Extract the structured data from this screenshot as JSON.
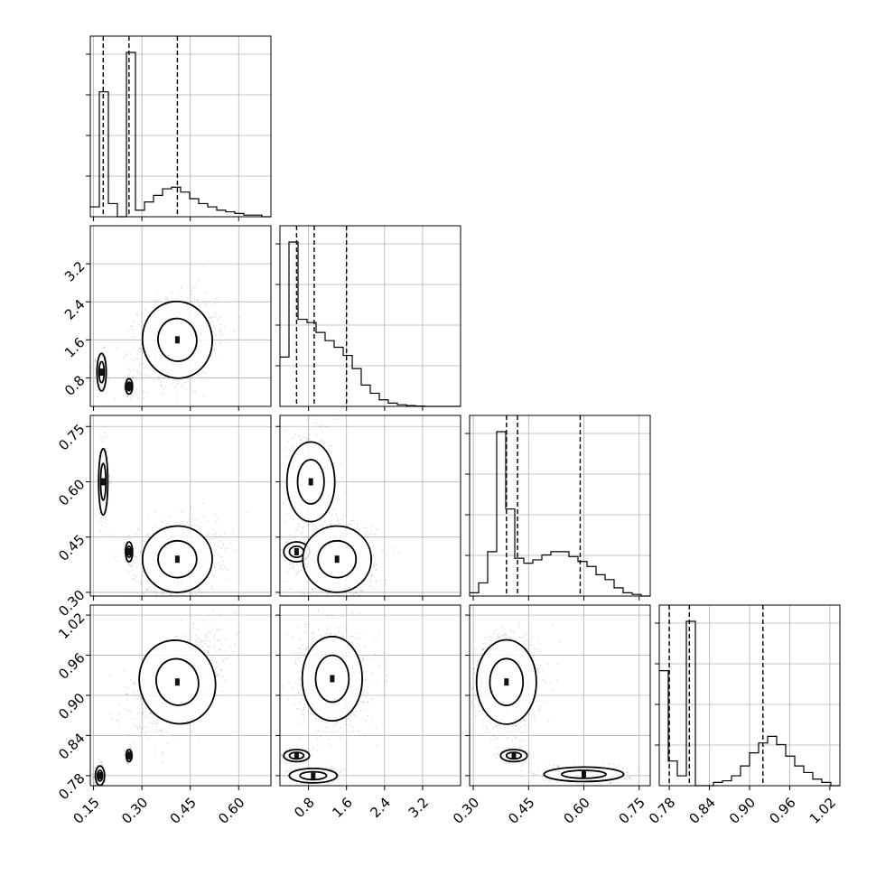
{
  "chart_data": {
    "type": "corner",
    "x_axis_ticks": [
      [
        "0.15",
        "0.30",
        "0.45",
        "0.60"
      ],
      [
        "0.8",
        "1.6",
        "2.4",
        "3.2"
      ],
      [
        "0.30",
        "0.45",
        "0.60",
        "0.75"
      ],
      [
        "0.78",
        "0.84",
        "0.90",
        "0.96",
        "1.02"
      ]
    ],
    "y_axis_ticks": [
      null,
      [
        "0.8",
        "1.6",
        "2.4",
        "3.2"
      ],
      [
        "0.30",
        "0.45",
        "0.60",
        "0.75"
      ],
      [
        "0.78",
        "0.84",
        "0.90",
        "0.96",
        "1.02"
      ]
    ],
    "ranges": [
      [
        0.14,
        0.7
      ],
      [
        0.2,
        4.0
      ],
      [
        0.29,
        0.78
      ],
      [
        0.765,
        1.035
      ]
    ],
    "quantiles": [
      [
        0.18,
        0.26,
        0.41
      ],
      [
        0.55,
        0.92,
        1.6
      ],
      [
        0.39,
        0.42,
        0.59
      ],
      [
        0.78,
        0.81,
        0.92
      ]
    ],
    "histograms": [
      {
        "edges": [
          0.14,
          0.168,
          0.196,
          0.224,
          0.252,
          0.28,
          0.308,
          0.336,
          0.364,
          0.392,
          0.42,
          0.448,
          0.476,
          0.504,
          0.532,
          0.56,
          0.588,
          0.616,
          0.644,
          0.672,
          0.7
        ],
        "counts": [
          0.06,
          0.76,
          0.08,
          0.0,
          1.0,
          0.04,
          0.09,
          0.13,
          0.17,
          0.18,
          0.15,
          0.11,
          0.08,
          0.06,
          0.04,
          0.03,
          0.02,
          0.01,
          0.01,
          0.0
        ]
      },
      {
        "edges": [
          0.2,
          0.39,
          0.58,
          0.77,
          0.96,
          1.15,
          1.34,
          1.53,
          1.72,
          1.91,
          2.1,
          2.29,
          2.48,
          2.67,
          2.86,
          3.05,
          3.24,
          3.43,
          3.62,
          3.81,
          4.0
        ],
        "counts": [
          0.3,
          1.0,
          0.53,
          0.51,
          0.45,
          0.4,
          0.36,
          0.31,
          0.23,
          0.13,
          0.08,
          0.04,
          0.02,
          0.01,
          0.005,
          0.002,
          0.0,
          0.0,
          0.0,
          0.0
        ]
      },
      {
        "edges": [
          0.29,
          0.3145,
          0.339,
          0.3635,
          0.388,
          0.4125,
          0.437,
          0.4615,
          0.486,
          0.5105,
          0.535,
          0.5595,
          0.584,
          0.6085,
          0.633,
          0.6575,
          0.682,
          0.7065,
          0.731,
          0.7555,
          0.78
        ],
        "counts": [
          0.02,
          0.08,
          0.27,
          1.0,
          0.53,
          0.23,
          0.2,
          0.22,
          0.25,
          0.27,
          0.27,
          0.24,
          0.21,
          0.18,
          0.13,
          0.1,
          0.05,
          0.02,
          0.01,
          0.0
        ]
      },
      {
        "edges": [
          0.765,
          0.7785,
          0.792,
          0.8055,
          0.819,
          0.8325,
          0.846,
          0.8595,
          0.873,
          0.8865,
          0.9,
          0.9135,
          0.927,
          0.9405,
          0.954,
          0.9675,
          0.981,
          0.9945,
          1.008,
          1.0215,
          1.035
        ],
        "counts": [
          0.7,
          0.15,
          0.06,
          1.0,
          0.0,
          0.0,
          0.02,
          0.03,
          0.06,
          0.12,
          0.2,
          0.26,
          0.3,
          0.25,
          0.18,
          0.12,
          0.08,
          0.04,
          0.02,
          0.0
        ]
      }
    ],
    "clusters": {
      "1_0": [
        {
          "cx": 0.175,
          "cy": 0.92,
          "sx": 0.008,
          "sy": 0.22,
          "r": 0,
          "w": 0.2
        },
        {
          "cx": 0.26,
          "cy": 0.62,
          "sx": 0.006,
          "sy": 0.09,
          "r": 0,
          "w": 0.15
        },
        {
          "cx": 0.41,
          "cy": 1.6,
          "sx": 0.06,
          "sy": 0.45,
          "r": 0.2,
          "w": 0.65
        }
      ],
      "2_0": [
        {
          "cx": 0.18,
          "cy": 0.6,
          "sx": 0.008,
          "sy": 0.05,
          "r": 0,
          "w": 0.2
        },
        {
          "cx": 0.26,
          "cy": 0.41,
          "sx": 0.006,
          "sy": 0.015,
          "r": 0,
          "w": 0.15
        },
        {
          "cx": 0.41,
          "cy": 0.39,
          "sx": 0.06,
          "sy": 0.05,
          "r": 0.1,
          "w": 0.65
        }
      ],
      "2_1": [
        {
          "cx": 0.85,
          "cy": 0.6,
          "sx": 0.28,
          "sy": 0.06,
          "r": 0,
          "w": 0.3
        },
        {
          "cx": 0.55,
          "cy": 0.41,
          "sx": 0.15,
          "sy": 0.015,
          "r": 0,
          "w": 0.1
        },
        {
          "cx": 1.4,
          "cy": 0.39,
          "sx": 0.4,
          "sy": 0.05,
          "r": 0,
          "w": 0.6
        }
      ],
      "3_0": [
        {
          "cx": 0.17,
          "cy": 0.78,
          "sx": 0.008,
          "sy": 0.008,
          "r": 0,
          "w": 0.2
        },
        {
          "cx": 0.26,
          "cy": 0.81,
          "sx": 0.005,
          "sy": 0.005,
          "r": 0,
          "w": 0.15
        },
        {
          "cx": 0.41,
          "cy": 0.92,
          "sx": 0.065,
          "sy": 0.035,
          "r": 0.5,
          "w": 0.65
        }
      ],
      "3_1": [
        {
          "cx": 0.9,
          "cy": 0.78,
          "sx": 0.28,
          "sy": 0.006,
          "r": 0,
          "w": 0.2
        },
        {
          "cx": 0.55,
          "cy": 0.81,
          "sx": 0.15,
          "sy": 0.005,
          "r": 0,
          "w": 0.15
        },
        {
          "cx": 1.3,
          "cy": 0.925,
          "sx": 0.35,
          "sy": 0.035,
          "r": 0,
          "w": 0.65
        }
      ],
      "3_2": [
        {
          "cx": 0.6,
          "cy": 0.782,
          "sx": 0.06,
          "sy": 0.006,
          "r": 0,
          "w": 0.2
        },
        {
          "cx": 0.41,
          "cy": 0.81,
          "sx": 0.02,
          "sy": 0.005,
          "r": 0,
          "w": 0.15
        },
        {
          "cx": 0.39,
          "cy": 0.92,
          "sx": 0.045,
          "sy": 0.035,
          "r": 0,
          "w": 0.65
        }
      ]
    }
  }
}
